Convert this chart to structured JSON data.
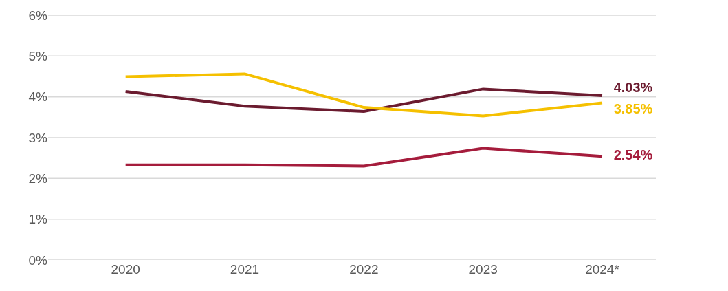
{
  "chart_data": {
    "type": "line",
    "categories": [
      "2020",
      "2021",
      "2022",
      "2023",
      "2024*"
    ],
    "series": [
      {
        "color": "#6b1b2f",
        "values": [
          4.13,
          3.77,
          3.64,
          4.19,
          4.03
        ],
        "value_labels": [
          null,
          null,
          null,
          null,
          "4.03%"
        ]
      },
      {
        "color": "#f5c000",
        "values": [
          4.49,
          4.56,
          3.74,
          3.53,
          3.85
        ],
        "value_labels": [
          null,
          null,
          null,
          null,
          "3.85%"
        ]
      },
      {
        "color": "#a51c3c",
        "values": [
          2.33,
          2.33,
          2.3,
          2.74,
          2.54
        ],
        "value_labels": [
          null,
          null,
          null,
          null,
          "2.54%"
        ]
      }
    ],
    "ylim": [
      0,
      6
    ],
    "yticks": [
      {
        "value": 0,
        "label": "0%"
      },
      {
        "value": 1,
        "label": "1%"
      },
      {
        "value": 2,
        "label": "2%"
      },
      {
        "value": 3,
        "label": "3%"
      },
      {
        "value": 4,
        "label": "4%"
      },
      {
        "value": 5,
        "label": "5%"
      },
      {
        "value": 6,
        "label": "6%"
      }
    ],
    "grid": "y",
    "marker": "none",
    "line_style": "solid"
  }
}
